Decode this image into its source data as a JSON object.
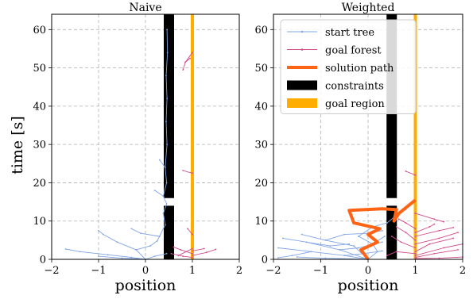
{
  "chart_data": [
    {
      "type": "line",
      "title": "Naive",
      "xlabel": "position",
      "ylabel": "time [s]",
      "xlim": [
        -2,
        2
      ],
      "ylim": [
        0,
        64
      ],
      "xticks": [
        -2,
        -1,
        0,
        1,
        2
      ],
      "yticks": [
        0,
        10,
        20,
        30,
        40,
        50,
        60
      ],
      "grid": true,
      "constraints": [
        {
          "x": 0.5,
          "y0": 16,
          "y1": 64
        },
        {
          "x": 0.5,
          "y0": 0,
          "y1": 14
        }
      ],
      "goal_region": {
        "x": 1.0,
        "y0": 0,
        "y1": 64
      },
      "series": [
        {
          "segments": [
            [
              [
                0,
                0
              ],
              [
                -0.3,
                0.5
              ],
              [
                -0.8,
                1.2
              ],
              [
                -1.4,
                2.0
              ],
              [
                -1.7,
                2.7
              ]
            ],
            [
              [
                0,
                0
              ],
              [
                0.2,
                0.8
              ],
              [
                0.45,
                1.5
              ]
            ],
            [
              [
                0,
                0
              ],
              [
                -0.5,
                0.3
              ],
              [
                -1.0,
                0.8
              ]
            ],
            [
              [
                0,
                0
              ],
              [
                -0.2,
                2.5
              ],
              [
                -0.6,
                4.5
              ],
              [
                -0.9,
                6.5
              ],
              [
                -1.0,
                7.5
              ]
            ],
            [
              [
                -0.2,
                2.5
              ],
              [
                0.1,
                3.5
              ],
              [
                0.25,
                4.8
              ],
              [
                0.3,
                6.0
              ]
            ],
            [
              [
                0.3,
                6.0
              ],
              [
                0.42,
                9.0
              ],
              [
                0.38,
                12.0
              ],
              [
                0.45,
                14.5
              ],
              [
                0.38,
                16.5
              ],
              [
                0.45,
                20
              ],
              [
                0.42,
                24
              ],
              [
                0.46,
                30
              ],
              [
                0.44,
                36
              ],
              [
                0.46,
                42
              ],
              [
                0.44,
                48
              ],
              [
                0.47,
                54
              ],
              [
                0.46,
                60
              ]
            ],
            [
              [
                0.38,
                16.5
              ],
              [
                0.2,
                18.0
              ]
            ],
            [
              [
                0.3,
                6.0
              ],
              [
                -0.1,
                6.8
              ],
              [
                -0.3,
                8.0
              ]
            ],
            [
              [
                0.42,
                24
              ],
              [
                0.3,
                26.0
              ]
            ]
          ]
        },
        {
          "segments": [
            [
              [
                1.0,
                0.5
              ],
              [
                0.8,
                0.8
              ],
              [
                0.55,
                1.5
              ]
            ],
            [
              [
                1.0,
                1.0
              ],
              [
                1.3,
                1.8
              ],
              [
                1.5,
                2.6
              ]
            ],
            [
              [
                1.0,
                1.5
              ],
              [
                0.75,
                2.5
              ],
              [
                0.6,
                3.2
              ]
            ],
            [
              [
                1.0,
                2.2
              ],
              [
                1.25,
                2.8
              ]
            ],
            [
              [
                1.0,
                2.8
              ],
              [
                0.7,
                1.0
              ]
            ],
            [
              [
                1.0,
                6.5
              ],
              [
                0.9,
                8.0
              ]
            ],
            [
              [
                1.0,
                22.5
              ],
              [
                0.8,
                23.2
              ]
            ],
            [
              [
                1.0,
                54.0
              ],
              [
                0.85,
                51.5
              ],
              [
                0.8,
                49.5
              ]
            ],
            [
              [
                0.85,
                51.5
              ],
              [
                0.95,
                52.5
              ]
            ]
          ]
        }
      ],
      "solution": []
    },
    {
      "type": "line",
      "title": "Weighted",
      "xlabel": "position",
      "ylabel": "",
      "xlim": [
        -2,
        2
      ],
      "ylim": [
        0,
        64
      ],
      "xticks": [
        -2,
        -1,
        0,
        1,
        2
      ],
      "yticks": [
        0,
        10,
        20,
        30,
        40,
        50,
        60
      ],
      "grid": true,
      "constraints": [
        {
          "x": 0.5,
          "y0": 16,
          "y1": 64
        },
        {
          "x": 0.5,
          "y0": 0,
          "y1": 14
        }
      ],
      "goal_region": {
        "x": 1.0,
        "y0": 0,
        "y1": 64
      },
      "series": [
        {
          "name": "start tree",
          "segments": [
            [
              [
                0,
                0
              ],
              [
                -0.5,
                1.0
              ],
              [
                -1.2,
                2.0
              ],
              [
                -1.9,
                3.0
              ]
            ],
            [
              [
                0,
                0
              ],
              [
                -0.6,
                2.5
              ],
              [
                -1.3,
                4.5
              ],
              [
                -1.8,
                5.5
              ]
            ],
            [
              [
                0,
                0
              ],
              [
                -0.3,
                3.5
              ],
              [
                -0.9,
                5.0
              ],
              [
                -1.4,
                6.5
              ]
            ],
            [
              [
                0,
                0
              ],
              [
                0.2,
                2.0
              ],
              [
                0.1,
                4.0
              ],
              [
                -0.2,
                6.0
              ]
            ],
            [
              [
                -0.9,
                5.0
              ],
              [
                -0.5,
                6.5
              ],
              [
                0.0,
                6.8
              ],
              [
                0.3,
                7.5
              ]
            ],
            [
              [
                -1.2,
                2.0
              ],
              [
                -1.6,
                1.0
              ],
              [
                -1.9,
                0.4
              ]
            ],
            [
              [
                -0.6,
                2.5
              ],
              [
                -0.2,
                3.0
              ],
              [
                0.3,
                4.5
              ]
            ],
            [
              [
                0,
                0
              ],
              [
                -0.9,
                0.3
              ],
              [
                -1.5,
                0.6
              ]
            ],
            [
              [
                -0.2,
                6.0
              ],
              [
                0.1,
                8.5
              ],
              [
                0.4,
                9.5
              ],
              [
                0.6,
                11.5
              ]
            ],
            [
              [
                -1.3,
                4.5
              ],
              [
                -0.8,
                3.5
              ],
              [
                -0.4,
                4.0
              ]
            ],
            [
              [
                0.1,
                4.0
              ],
              [
                0.35,
                6.0
              ]
            ],
            [
              [
                0.6,
                11.5
              ],
              [
                0.8,
                13.0
              ]
            ],
            [
              [
                -0.5,
                1.0
              ],
              [
                -0.1,
                1.5
              ],
              [
                0.3,
                2.2
              ]
            ]
          ]
        },
        {
          "name": "goal forest",
          "segments": [
            [
              [
                1.0,
                0.5
              ],
              [
                1.4,
                1.5
              ],
              [
                1.9,
                2.5
              ]
            ],
            [
              [
                1.0,
                1.0
              ],
              [
                1.6,
                3.0
              ],
              [
                2.0,
                4.0
              ]
            ],
            [
              [
                1.0,
                2.0
              ],
              [
                1.3,
                4.0
              ],
              [
                1.8,
                5.5
              ]
            ],
            [
              [
                1.0,
                3.0
              ],
              [
                0.7,
                4.5
              ],
              [
                0.5,
                6.0
              ]
            ],
            [
              [
                1.0,
                4.0
              ],
              [
                1.5,
                5.5
              ],
              [
                1.9,
                7.0
              ]
            ],
            [
              [
                1.0,
                5.0
              ],
              [
                0.8,
                7.0
              ],
              [
                0.6,
                8.5
              ]
            ],
            [
              [
                1.0,
                6.0
              ],
              [
                1.5,
                7.5
              ],
              [
                1.8,
                8.3
              ]
            ],
            [
              [
                1.0,
                7.0
              ],
              [
                1.3,
                8.5
              ],
              [
                1.4,
                9.2
              ]
            ],
            [
              [
                1.0,
                1.5
              ],
              [
                0.6,
                2.0
              ],
              [
                0.4,
                1.0
              ]
            ],
            [
              [
                1.0,
                8.0
              ],
              [
                0.8,
                9.5
              ],
              [
                0.65,
                10.5
              ]
            ],
            [
              [
                1.0,
                0.2
              ],
              [
                1.5,
                0.3
              ],
              [
                2.0,
                0.6
              ]
            ],
            [
              [
                1.0,
                12.0
              ],
              [
                1.4,
                10.5
              ],
              [
                1.6,
                9.8
              ]
            ],
            [
              [
                1.0,
                22.0
              ],
              [
                0.8,
                23.0
              ]
            ]
          ]
        }
      ],
      "solution": [
        [
          0,
          0
        ],
        [
          -0.15,
          2.5
        ],
        [
          0.2,
          4.5
        ],
        [
          0.0,
          6.5
        ],
        [
          0.25,
          8.0
        ],
        [
          -0.3,
          9.5
        ],
        [
          -0.4,
          12.8
        ],
        [
          0.3,
          13.2
        ],
        [
          0.6,
          13.0
        ],
        [
          0.55,
          10.0
        ],
        [
          0.65,
          12.0
        ],
        [
          1.0,
          15.5
        ]
      ]
    }
  ],
  "legend": {
    "placement": "top-left",
    "items": [
      {
        "label": "start tree",
        "color": "#7fa5e6",
        "kind": "thin"
      },
      {
        "label": "goal forest",
        "color": "#d14a8b",
        "kind": "thin"
      },
      {
        "label": "solution path",
        "color": "#ff6414",
        "kind": "thick"
      },
      {
        "label": "constraints",
        "color": "#000000",
        "kind": "block"
      },
      {
        "label": "goal region",
        "color": "#ffae00",
        "kind": "block"
      }
    ]
  },
  "colors": {
    "start_tree": "#7fa5e6",
    "goal_forest": "#d14a8b",
    "solution": "#ff6414",
    "constraint": "#000000",
    "goal": "#ffae00",
    "grid": "#b0b0b0"
  }
}
